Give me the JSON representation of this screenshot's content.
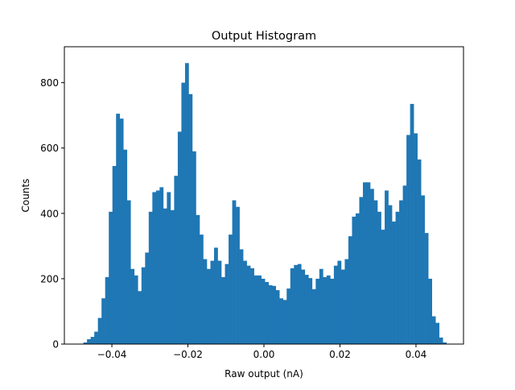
{
  "chart_data": {
    "type": "bar",
    "title": "Output Histogram",
    "xlabel": "Raw output (nA)",
    "ylabel": "Counts",
    "xlim": [
      -0.0525,
      0.0525
    ],
    "ylim": [
      0,
      910
    ],
    "x_ticks": [
      -0.04,
      -0.02,
      0.0,
      0.02,
      0.04
    ],
    "x_tick_labels": [
      "−0.04",
      "−0.02",
      "0.00",
      "0.02",
      "0.04"
    ],
    "y_ticks": [
      0,
      200,
      400,
      600,
      800
    ],
    "y_tick_labels": [
      "0",
      "200",
      "400",
      "600",
      "800"
    ],
    "bin_start": -0.0475,
    "bin_width": 0.000955,
    "values": [
      5,
      15,
      22,
      38,
      80,
      140,
      205,
      405,
      545,
      705,
      690,
      595,
      440,
      230,
      210,
      162,
      235,
      280,
      405,
      465,
      470,
      480,
      415,
      465,
      410,
      515,
      650,
      800,
      860,
      765,
      590,
      395,
      335,
      260,
      230,
      255,
      295,
      255,
      205,
      245,
      335,
      440,
      420,
      290,
      255,
      240,
      232,
      210,
      210,
      200,
      190,
      180,
      178,
      165,
      140,
      135,
      170,
      232,
      242,
      245,
      228,
      212,
      202,
      168,
      200,
      230,
      205,
      210,
      200,
      240,
      255,
      228,
      260,
      330,
      390,
      400,
      450,
      495,
      495,
      475,
      440,
      405,
      350,
      470,
      425,
      375,
      405,
      440,
      485,
      640,
      735,
      645,
      565,
      455,
      340,
      200,
      85,
      65,
      20,
      5
    ]
  }
}
